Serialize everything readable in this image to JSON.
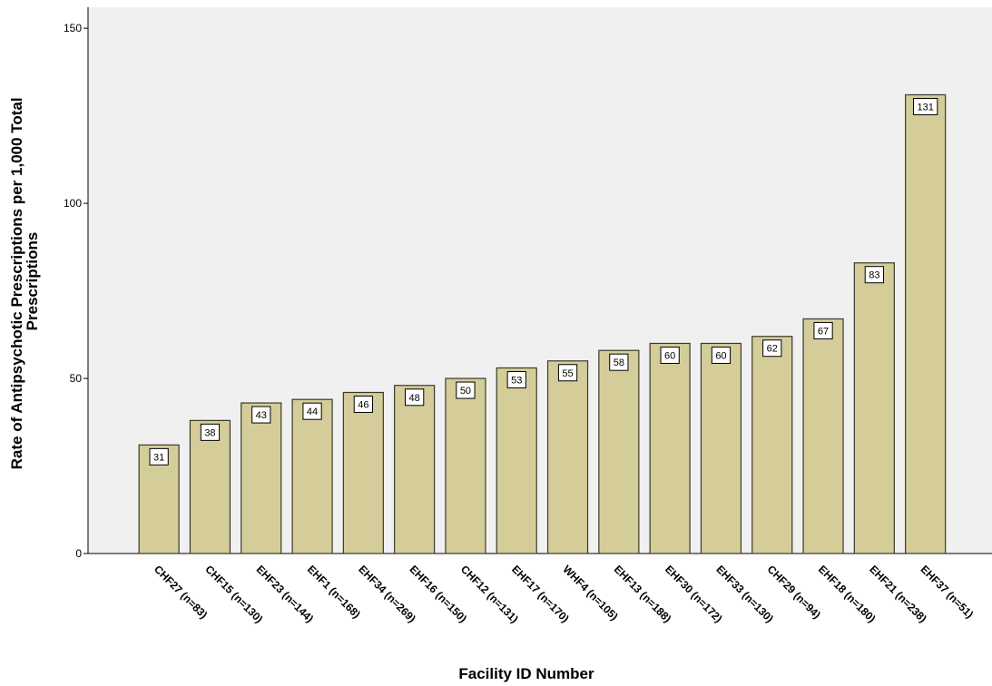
{
  "chart_data": {
    "type": "bar",
    "y_label": [
      "Rate of Antipsychotic Prescriptions per 1,000 Total",
      "Prescriptions"
    ],
    "x_label": "Facility ID Number",
    "categories": [
      "CHF27 (n=83)",
      "CHF15 (n=130)",
      "EHF23 (n=144)",
      "EHF1 (n=168)",
      "EHF34 (n=269)",
      "EHF16 (n=150)",
      "CHF12 (n=131)",
      "EHF17 (n=170)",
      "WHF4 (n=105)",
      "EHF13 (n=188)",
      "EHF30 (n=172)",
      "EHF33 (n=130)",
      "CHF29 (n=94)",
      "EHF18 (n=180)",
      "EHF21 (n=238)",
      "EHF37 (n=51)"
    ],
    "values": [
      31,
      38,
      43,
      44,
      46,
      48,
      50,
      53,
      55,
      58,
      60,
      60,
      62,
      67,
      83,
      131
    ],
    "color": "#d4cd9a",
    "ylim": [
      0,
      156
    ],
    "yticks": [
      0,
      50,
      100,
      150
    ]
  }
}
